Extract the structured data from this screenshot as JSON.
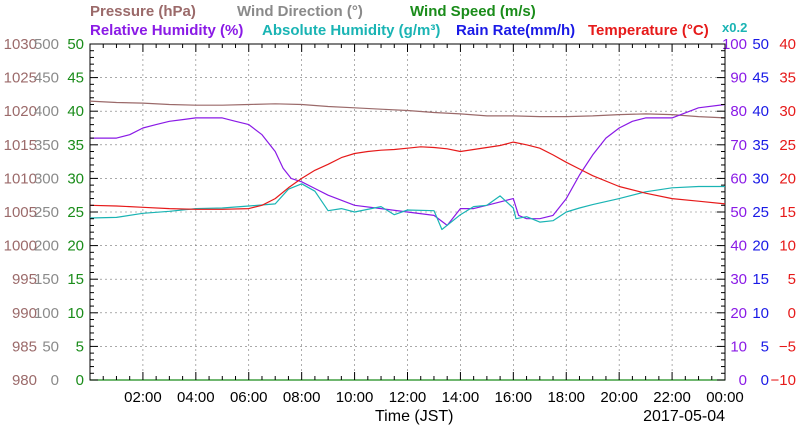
{
  "chart_data": {
    "type": "line",
    "xlabel": "Time (JST)",
    "date_label": "2017-05-04",
    "x_ticks": [
      "02:00",
      "04:00",
      "06:00",
      "08:00",
      "10:00",
      "12:00",
      "14:00",
      "16:00",
      "18:00",
      "20:00",
      "22:00",
      "00:00"
    ],
    "legend": [
      {
        "key": "pressure",
        "text": "Pressure (hPa)",
        "color": "#9b6a6a"
      },
      {
        "key": "wind_dir",
        "text": "Wind Direction (°)",
        "color": "#8a8a8a"
      },
      {
        "key": "wind_speed",
        "text": "Wind Speed (m/s)",
        "color": "#1a8c1a"
      },
      {
        "key": "rh",
        "text": "Relative Humidity (%)",
        "color": "#8a1ae6"
      },
      {
        "key": "ah",
        "text": "Absolute Humidity (g/m³)",
        "color": "#1ab4b4"
      },
      {
        "key": "rain",
        "text": "Rain Rate(mm/h)",
        "color": "#1a1ae6"
      },
      {
        "key": "temp",
        "text": "Temperature (°C)",
        "color": "#e61a1a"
      }
    ],
    "ah_multiplier": "x0.2",
    "axes": {
      "pressure": {
        "color": "#9b6a6a",
        "ticks": [
          "1030",
          "1025",
          "1020",
          "1015",
          "1010",
          "1005",
          "1000",
          "995",
          "990",
          "985",
          "980"
        ]
      },
      "wind_dir": {
        "color": "#8a8a8a",
        "ticks": [
          "500",
          "450",
          "400",
          "350",
          "300",
          "250",
          "200",
          "150",
          "100",
          "50",
          "0"
        ]
      },
      "wind_speed": {
        "color": "#1a8c1a",
        "ticks": [
          "50",
          "45",
          "40",
          "35",
          "30",
          "25",
          "20",
          "15",
          "10",
          "5",
          "0"
        ]
      },
      "rh": {
        "color": "#8a1ae6",
        "ticks": [
          "100",
          "90",
          "80",
          "70",
          "60",
          "50",
          "40",
          "30",
          "20",
          "10",
          "0"
        ]
      },
      "rain": {
        "color": "#1a1ae6",
        "ticks": [
          "50",
          "45",
          "40",
          "35",
          "30",
          "25",
          "20",
          "15",
          "10",
          "5",
          "0"
        ]
      },
      "temp": {
        "color": "#e61a1a",
        "ticks": [
          "40",
          "35",
          "30",
          "25",
          "20",
          "15",
          "10",
          "5",
          "0",
          "−5",
          "−10"
        ]
      }
    },
    "series": [
      {
        "name": "Pressure (hPa)",
        "color": "#9b6a6a",
        "axis": "pressure",
        "x": [
          0,
          1,
          2,
          3,
          4,
          5,
          6,
          7,
          8,
          9,
          10,
          11,
          12,
          13,
          14,
          15,
          16,
          17,
          18,
          19,
          20,
          21,
          22,
          23,
          24
        ],
        "y": [
          1021.5,
          1021.3,
          1021.2,
          1021.0,
          1020.9,
          1020.9,
          1021.0,
          1021.1,
          1021.0,
          1020.7,
          1020.5,
          1020.3,
          1020.1,
          1019.8,
          1019.6,
          1019.3,
          1019.3,
          1019.2,
          1019.2,
          1019.3,
          1019.5,
          1019.6,
          1019.5,
          1019.2,
          1019.0
        ]
      },
      {
        "name": "Relative Humidity (%)",
        "color": "#8a1ae6",
        "axis": "rh",
        "x": [
          0,
          1,
          1.5,
          2,
          2.5,
          3,
          3.5,
          4,
          4.5,
          5,
          5.5,
          6,
          6.5,
          7,
          7.3,
          7.6,
          8,
          8.5,
          9,
          10,
          11,
          12,
          13,
          13.5,
          14,
          14.5,
          15,
          15.5,
          16,
          16.2,
          16.5,
          17,
          17.5,
          18,
          18.5,
          19,
          19.5,
          20,
          20.5,
          21,
          22,
          23,
          24
        ],
        "y": [
          72,
          72,
          73,
          75,
          76,
          77,
          77.5,
          78,
          78,
          78,
          77,
          76,
          73,
          68,
          63,
          60,
          59,
          57,
          55,
          52,
          51,
          50,
          49,
          46,
          51,
          51,
          52,
          53,
          54,
          49,
          48,
          48,
          49,
          54,
          61,
          67,
          72,
          75,
          77,
          78,
          78,
          81,
          82
        ]
      },
      {
        "name": "Absolute Humidity (g/m³)",
        "color": "#1ab4b4",
        "axis": "wind_speed",
        "x": [
          0,
          1,
          2,
          3,
          4,
          5,
          6,
          7,
          7.5,
          8,
          8.5,
          9,
          9.5,
          10,
          11,
          11.5,
          12,
          13,
          13.3,
          14,
          14.5,
          15,
          15.5,
          16,
          16.1,
          16.5,
          17,
          17.5,
          18,
          18.5,
          19,
          20,
          21,
          22,
          23,
          24
        ],
        "y": [
          24.1,
          24.2,
          24.8,
          25.1,
          25.5,
          25.6,
          25.9,
          26.2,
          28.4,
          29.2,
          28.1,
          25.2,
          25.5,
          25.0,
          25.8,
          24.6,
          25.3,
          25.2,
          22.4,
          24.6,
          25.8,
          26.0,
          27.4,
          25.6,
          24.0,
          24.3,
          23.5,
          23.7,
          25.0,
          25.6,
          26.1,
          27.0,
          28.0,
          28.6,
          28.8,
          28.8
        ]
      },
      {
        "name": "Temperature (°C)",
        "color": "#e61a1a",
        "axis": "temp",
        "x": [
          0,
          1,
          2,
          3,
          4,
          5,
          6,
          6.5,
          7,
          7.5,
          8,
          8.5,
          9,
          9.5,
          10,
          10.5,
          11,
          11.5,
          12,
          12.5,
          13,
          13.5,
          14,
          14.5,
          15,
          15.5,
          16,
          16.5,
          17,
          17.5,
          18,
          18.5,
          19,
          20,
          21,
          22,
          23,
          24
        ],
        "y": [
          16.0,
          15.9,
          15.7,
          15.5,
          15.4,
          15.4,
          15.5,
          16.0,
          17.0,
          18.6,
          20.0,
          21.2,
          22.1,
          23.1,
          23.7,
          24.0,
          24.2,
          24.3,
          24.5,
          24.7,
          24.6,
          24.4,
          24.0,
          24.3,
          24.6,
          24.9,
          25.4,
          25.0,
          24.5,
          23.5,
          22.4,
          21.4,
          20.4,
          18.8,
          17.8,
          17.0,
          16.6,
          16.2
        ]
      },
      {
        "name": "Wind Speed (m/s)",
        "color": "#1a8c1a",
        "axis": "wind_speed",
        "x": [
          0,
          24
        ],
        "y": [
          0,
          0
        ]
      }
    ],
    "xlim": [
      0,
      24
    ]
  }
}
